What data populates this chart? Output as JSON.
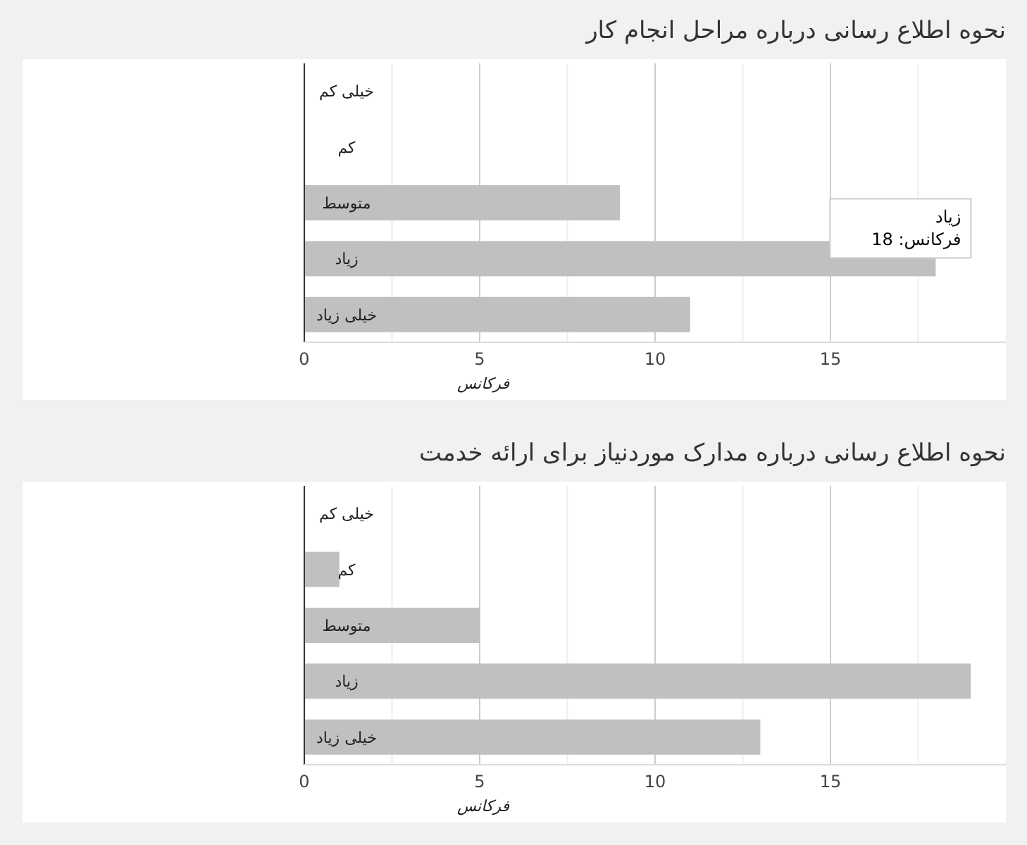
{
  "chart_data": [
    {
      "type": "bar",
      "orientation": "horizontal",
      "title": "نحوه اطلاع رسانی درباره مراحل انجام کار",
      "xlabel": "فرکانس",
      "categories": [
        "خیلی کم",
        "کم",
        "متوسط",
        "زیاد",
        "خیلی زیاد"
      ],
      "values": [
        0,
        0,
        9,
        18,
        11
      ],
      "color": "#c0c0c0",
      "xlim": [
        0,
        20
      ],
      "xticks": [
        0,
        {
          "value": 2.5,
          "label": null
        },
        5,
        {
          "value": 7.5,
          "label": null
        },
        10,
        {
          "value": 12.5,
          "label": null
        },
        15,
        {
          "value": 17.5,
          "label": null
        }
      ],
      "grid": "x",
      "annotations": [
        {
          "text": "زیاد\nفرکانس: 18",
          "x": 18,
          "y": "زیاد"
        }
      ]
    },
    {
      "type": "bar",
      "orientation": "horizontal",
      "title": "نحوه اطلاع رسانی درباره مدارک موردنیاز برای ارائه خدمت",
      "xlabel": "فرکانس",
      "categories": [
        "خیلی کم",
        "کم",
        "متوسط",
        "زیاد",
        "خیلی زیاد"
      ],
      "values": [
        0,
        1,
        5,
        19,
        13
      ],
      "color": "#c0c0c0",
      "xlim": [
        0,
        20
      ],
      "xticks": [
        0,
        {
          "value": 2.5,
          "label": null
        },
        5,
        {
          "value": 7.5,
          "label": null
        },
        10,
        {
          "value": 12.5,
          "label": null
        },
        15,
        {
          "value": 17.5,
          "label": null
        }
      ],
      "grid": "x"
    }
  ]
}
